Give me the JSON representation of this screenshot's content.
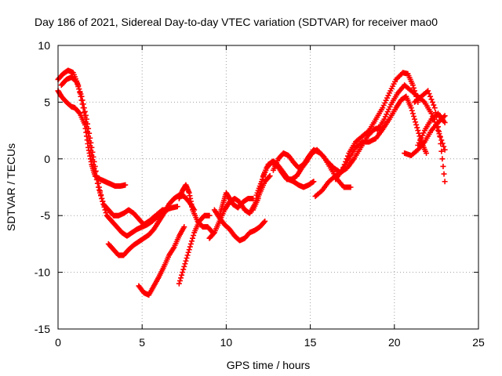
{
  "chart_data": {
    "type": "scatter",
    "title": "Day 186 of 2021, Sidereal Day-to-day VTEC variation (SDTVAR) for receiver mao0",
    "xlabel": "GPS time / hours",
    "ylabel": "SDTVAR / TECUs",
    "xlim": [
      0,
      25
    ],
    "ylim": [
      -15,
      10
    ],
    "xticks": [
      0,
      5,
      10,
      15,
      20,
      25
    ],
    "yticks": [
      -15,
      -10,
      -5,
      0,
      5,
      10
    ],
    "grid": true,
    "marker_color": "#ff0000",
    "tracks": [
      {
        "x": [
          0.0,
          0.2,
          0.5,
          0.8,
          1.0,
          1.3,
          1.6,
          1.8,
          2.0,
          2.2,
          2.5,
          2.8,
          3.1,
          3.4,
          3.7,
          4.0
        ],
        "y": [
          6.0,
          5.5,
          5.0,
          4.6,
          4.5,
          4.0,
          3.0,
          1.0,
          -0.5,
          -1.5,
          -1.8,
          -2.0,
          -2.2,
          -2.4,
          -2.4,
          -2.3
        ]
      },
      {
        "x": [
          0.0,
          0.3,
          0.6,
          0.9,
          1.2,
          1.5,
          1.8,
          2.1,
          2.4,
          2.7,
          3.0,
          3.3,
          3.6,
          3.9,
          4.2,
          4.5,
          4.8,
          5.1,
          5.4,
          5.8,
          6.2,
          6.5
        ],
        "y": [
          7.0,
          7.5,
          7.8,
          7.6,
          6.5,
          4.5,
          2.0,
          -0.5,
          -2.5,
          -4.0,
          -4.5,
          -5.0,
          -5.0,
          -4.8,
          -4.5,
          -4.8,
          -5.3,
          -5.8,
          -5.5,
          -5.0,
          -4.5,
          -4.5
        ]
      },
      {
        "x": [
          0.2,
          0.5,
          0.8,
          1.1,
          1.4,
          1.7,
          2.0,
          2.3,
          2.6,
          2.9,
          3.2,
          3.5,
          3.8,
          4.1,
          4.4,
          4.7,
          5.0,
          5.3,
          5.6,
          6.0,
          6.4,
          6.8,
          7.1
        ],
        "y": [
          6.5,
          7.0,
          7.2,
          6.8,
          5.5,
          3.5,
          1.0,
          -1.5,
          -3.5,
          -5.0,
          -5.5,
          -6.0,
          -6.5,
          -6.8,
          -6.5,
          -6.2,
          -6.0,
          -5.8,
          -5.5,
          -5.0,
          -4.5,
          -4.3,
          -4.2
        ]
      },
      {
        "x": [
          3.0,
          3.3,
          3.6,
          3.9,
          4.2,
          4.5,
          4.8,
          5.1,
          5.4,
          5.7,
          6.0,
          6.3,
          6.6,
          6.9,
          7.2,
          7.5,
          7.8,
          8.1
        ],
        "y": [
          -7.5,
          -8.0,
          -8.5,
          -8.5,
          -8.0,
          -7.6,
          -7.3,
          -7.0,
          -6.7,
          -6.2,
          -5.5,
          -4.8,
          -4.0,
          -3.5,
          -3.2,
          -3.3,
          -3.8,
          -4.5
        ]
      },
      {
        "x": [
          4.8,
          5.1,
          5.4,
          5.7,
          6.0,
          6.3,
          6.6,
          6.9,
          7.2,
          7.5
        ],
        "y": [
          -11.2,
          -11.8,
          -12.0,
          -11.2,
          -10.4,
          -9.5,
          -8.5,
          -7.8,
          -6.8,
          -6.0
        ]
      },
      {
        "x": [
          7.2,
          7.5,
          7.8,
          8.1,
          8.4,
          8.7,
          9.0
        ],
        "y": [
          -11.0,
          -9.5,
          -8.0,
          -6.5,
          -5.5,
          -5.0,
          -5.0
        ]
      },
      {
        "x": [
          7.2,
          7.4,
          7.6,
          7.8,
          8.0,
          8.3,
          8.6,
          8.9,
          9.2
        ],
        "y": [
          -3.5,
          -2.8,
          -2.3,
          -3.0,
          -4.5,
          -5.5,
          -6.0,
          -6.0,
          -6.5
        ]
      },
      {
        "x": [
          9.0,
          9.3,
          9.6,
          9.9,
          10.2,
          10.5,
          10.8,
          11.1,
          11.4,
          11.7,
          12.0,
          12.3,
          12.6
        ],
        "y": [
          -7.0,
          -6.5,
          -5.5,
          -4.5,
          -3.8,
          -3.5,
          -3.8,
          -4.5,
          -4.8,
          -4.0,
          -3.0,
          -2.0,
          -1.5
        ]
      },
      {
        "x": [
          9.6,
          9.8,
          10.0,
          10.2,
          10.4,
          10.7,
          11.0,
          11.3,
          11.6
        ],
        "y": [
          -5.0,
          -4.0,
          -3.0,
          -3.5,
          -4.0,
          -4.3,
          -3.8,
          -3.5,
          -3.5
        ]
      },
      {
        "x": [
          9.3,
          9.6,
          9.9,
          10.2,
          10.5,
          10.8,
          11.1,
          11.4,
          11.7,
          12.0,
          12.3
        ],
        "y": [
          -4.5,
          -5.2,
          -5.8,
          -6.2,
          -6.8,
          -7.2,
          -7.0,
          -6.5,
          -6.3,
          -6.0,
          -5.5
        ]
      },
      {
        "x": [
          11.6,
          11.9,
          12.2,
          12.5,
          12.8,
          13.1,
          13.4,
          13.7,
          14.0,
          14.3,
          14.6,
          14.9,
          15.2
        ],
        "y": [
          -4.5,
          -3.5,
          -1.5,
          -0.5,
          -0.2,
          -0.6,
          -1.2,
          -1.8,
          -2.0,
          -2.3,
          -2.5,
          -2.3,
          -2.0
        ]
      },
      {
        "x": [
          11.8,
          12.1,
          12.4,
          12.7,
          13.0,
          13.3,
          13.6,
          13.9,
          14.2,
          14.5,
          14.8,
          15.1,
          15.4,
          15.8,
          16.2,
          16.6,
          17.0,
          17.4
        ],
        "y": [
          -3.2,
          -2.0,
          -0.8,
          -0.3,
          -0.5,
          -1.2,
          -1.8,
          -1.8,
          -1.5,
          -0.8,
          -0.2,
          0.5,
          0.8,
          0.2,
          -0.8,
          -1.8,
          -2.5,
          -2.5
        ]
      },
      {
        "x": [
          12.8,
          13.1,
          13.4,
          13.7,
          14.0,
          14.3,
          14.6,
          14.9,
          15.2,
          15.6,
          16.0,
          16.4,
          16.8,
          17.2,
          17.6,
          18.0,
          18.4,
          18.8,
          19.2
        ],
        "y": [
          -1.0,
          0.0,
          0.5,
          0.3,
          -0.3,
          -0.8,
          -0.5,
          0.2,
          0.8,
          0.5,
          -0.2,
          -0.8,
          -1.2,
          -0.8,
          0.0,
          1.0,
          2.0,
          2.6,
          2.8
        ]
      },
      {
        "x": [
          15.3,
          15.7,
          16.1,
          16.5,
          16.9,
          17.3,
          17.7,
          18.1,
          18.5,
          18.9,
          19.3,
          19.7,
          20.1,
          20.4,
          20.7,
          21.0,
          21.3,
          21.6,
          21.9
        ],
        "y": [
          -3.3,
          -2.8,
          -2.0,
          -1.5,
          -1.0,
          0.0,
          1.0,
          1.5,
          1.5,
          1.8,
          2.6,
          3.5,
          4.5,
          5.2,
          5.5,
          4.5,
          3.0,
          1.5,
          0.5
        ]
      },
      {
        "x": [
          16.5,
          16.9,
          17.3,
          17.7,
          18.1,
          18.5,
          18.9,
          19.3,
          19.7,
          20.1,
          20.5,
          20.8,
          21.1,
          21.4
        ],
        "y": [
          -1.8,
          -1.0,
          0.5,
          1.5,
          2.0,
          2.5,
          3.5,
          4.5,
          5.8,
          7.0,
          7.6,
          7.5,
          6.5,
          5.0
        ]
      },
      {
        "x": [
          19.0,
          19.4,
          19.8,
          20.2,
          20.6,
          21.0,
          21.4,
          21.8,
          22.2,
          22.6,
          23.0
        ],
        "y": [
          2.5,
          3.5,
          4.8,
          5.8,
          6.5,
          6.0,
          5.5,
          5.0,
          4.0,
          2.5,
          0.8
        ]
      },
      {
        "x": [
          20.6,
          21.0,
          21.4,
          21.8,
          22.2,
          22.6,
          23.0
        ],
        "y": [
          0.5,
          0.3,
          0.8,
          1.5,
          2.5,
          3.2,
          3.8
        ]
      },
      {
        "x": [
          21.4,
          21.8,
          22.2,
          22.6,
          23.0
        ],
        "y": [
          1.2,
          2.5,
          3.5,
          4.0,
          3.2
        ]
      },
      {
        "x": [
          21.2,
          21.6,
          22.0,
          22.4,
          22.7,
          23.0
        ],
        "y": [
          5.0,
          5.5,
          6.0,
          4.5,
          2.0,
          -2.0
        ]
      }
    ]
  }
}
